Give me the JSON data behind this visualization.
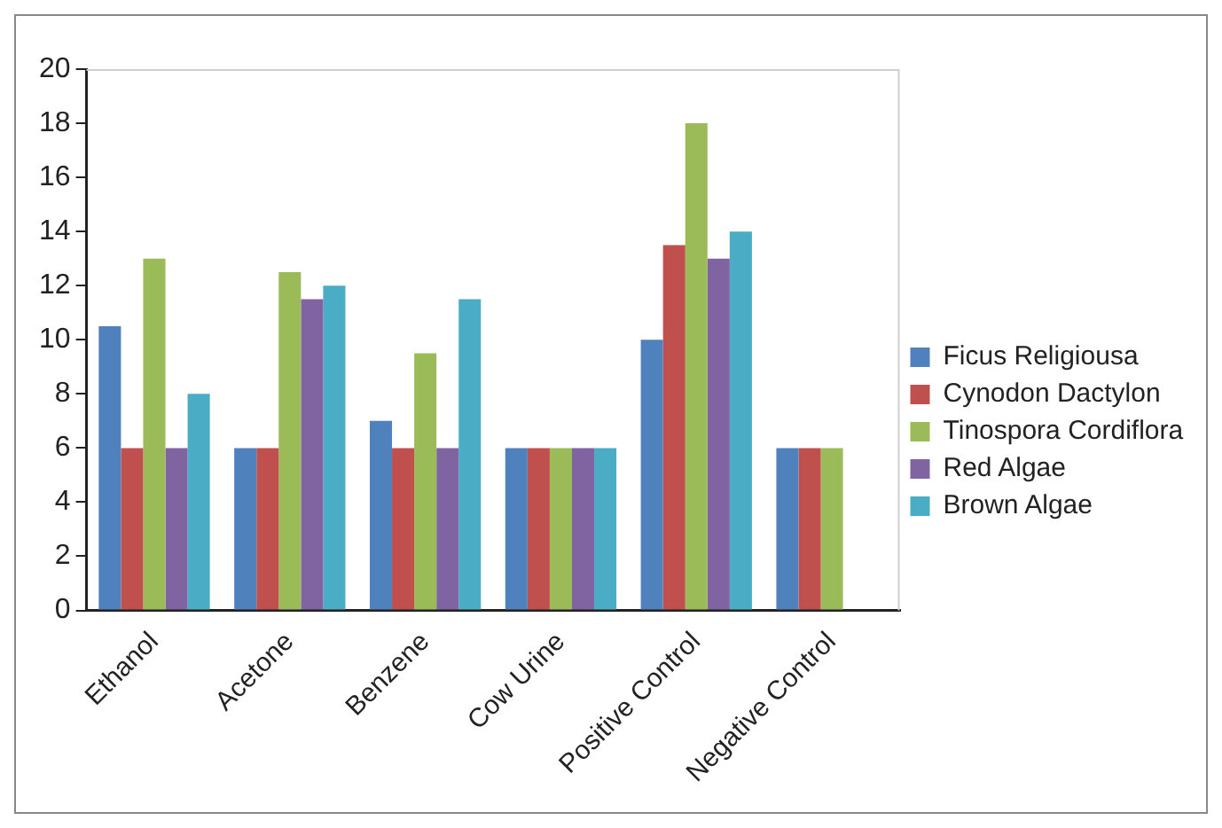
{
  "chart_data": {
    "type": "bar",
    "categories": [
      "Ethanol",
      "Acetone",
      "Benzene",
      "Cow Urine",
      "Positive Control",
      "Negative Control"
    ],
    "series": [
      {
        "name": "Ficus Religiousa",
        "color": "#4f81bd",
        "values": [
          10.5,
          6,
          7,
          6,
          10,
          6
        ]
      },
      {
        "name": "Cynodon Dactylon",
        "color": "#c0504d",
        "values": [
          6,
          6,
          6,
          6,
          13.5,
          6
        ]
      },
      {
        "name": "Tinospora Cordiflora",
        "color": "#9bbb59",
        "values": [
          13,
          12.5,
          9.5,
          6,
          18,
          6
        ]
      },
      {
        "name": "Red Algae",
        "color": "#8064a2",
        "values": [
          6,
          11.5,
          6,
          6,
          13,
          null
        ]
      },
      {
        "name": "Brown Algae",
        "color": "#4bacc6",
        "values": [
          8,
          12,
          11.5,
          6,
          14,
          null
        ]
      }
    ],
    "ylim": [
      0,
      20
    ],
    "yticks": [
      0,
      2,
      4,
      6,
      8,
      10,
      12,
      14,
      16,
      18,
      20
    ],
    "grid": false,
    "legend": "right"
  }
}
